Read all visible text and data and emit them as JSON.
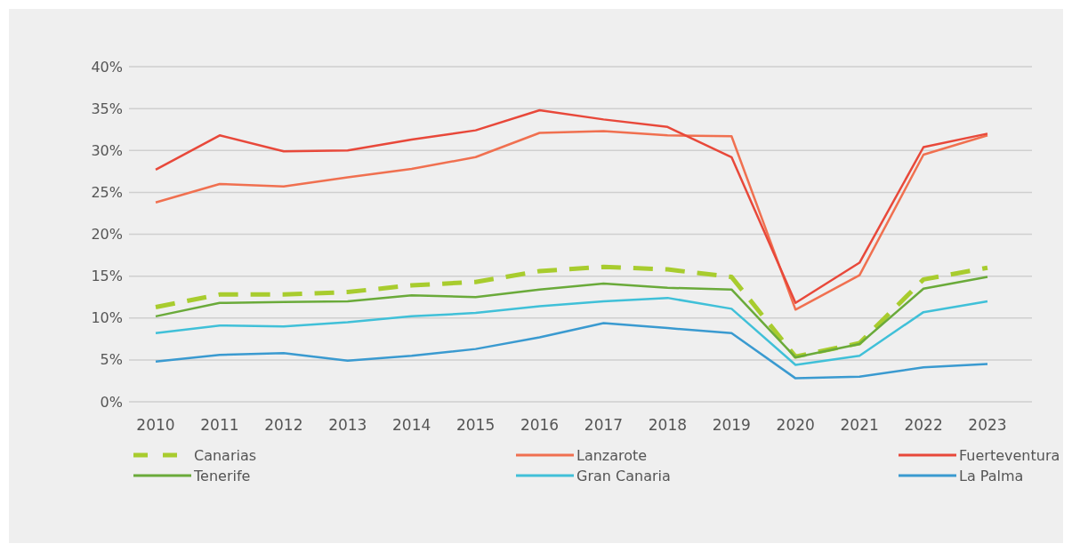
{
  "chart_data": {
    "type": "line",
    "categories": [
      "2010",
      "2011",
      "2012",
      "2013",
      "2014",
      "2015",
      "2016",
      "2017",
      "2018",
      "2019",
      "2020",
      "2021",
      "2022",
      "2023"
    ],
    "ylim": [
      0,
      40
    ],
    "yticks": [
      {
        "value": 0,
        "label": "0%"
      },
      {
        "value": 5,
        "label": "5%"
      },
      {
        "value": 10,
        "label": "10%"
      },
      {
        "value": 15,
        "label": "15%"
      },
      {
        "value": 20,
        "label": "20%"
      },
      {
        "value": 25,
        "label": "25%"
      },
      {
        "value": 30,
        "label": "30%"
      },
      {
        "value": 35,
        "label": "35%"
      },
      {
        "value": 40,
        "label": "40%"
      }
    ],
    "grid": "y",
    "legend": "bottom",
    "marker": "none",
    "series": [
      {
        "name": "Canarias",
        "color": "#a8cc2e",
        "line_style": "dashed",
        "values": [
          11.3,
          12.8,
          12.8,
          13.1,
          13.9,
          14.3,
          15.6,
          16.1,
          15.8,
          14.9,
          5.4,
          7.0,
          14.6,
          16.0
        ]
      },
      {
        "name": "Lanzarote",
        "color": "#f07050",
        "line_style": "solid",
        "values": [
          23.8,
          26.0,
          25.7,
          26.8,
          27.8,
          29.2,
          32.1,
          32.3,
          31.8,
          31.7,
          11.0,
          15.1,
          29.5,
          31.8
        ]
      },
      {
        "name": "Fuerteventura",
        "color": "#e8483a",
        "line_style": "solid",
        "values": [
          27.7,
          31.8,
          29.9,
          30.0,
          31.3,
          32.4,
          34.8,
          33.7,
          32.8,
          29.2,
          11.8,
          16.6,
          30.4,
          32.0
        ]
      },
      {
        "name": "Tenerife",
        "color": "#6aaa3a",
        "line_style": "solid",
        "values": [
          10.2,
          11.8,
          11.9,
          12.0,
          12.7,
          12.5,
          13.4,
          14.1,
          13.6,
          13.4,
          5.3,
          6.9,
          13.5,
          14.9
        ]
      },
      {
        "name": "Gran Canaria",
        "color": "#40c0d8",
        "line_style": "solid",
        "values": [
          8.2,
          9.1,
          9.0,
          9.5,
          10.2,
          10.6,
          11.4,
          12.0,
          12.4,
          11.1,
          4.4,
          5.5,
          10.7,
          12.0
        ]
      },
      {
        "name": "La Palma",
        "color": "#3a9ad0",
        "line_style": "solid",
        "values": [
          4.8,
          5.6,
          5.8,
          4.9,
          5.5,
          6.3,
          7.7,
          9.4,
          8.8,
          8.2,
          2.8,
          3.0,
          4.1,
          4.5
        ]
      }
    ]
  }
}
